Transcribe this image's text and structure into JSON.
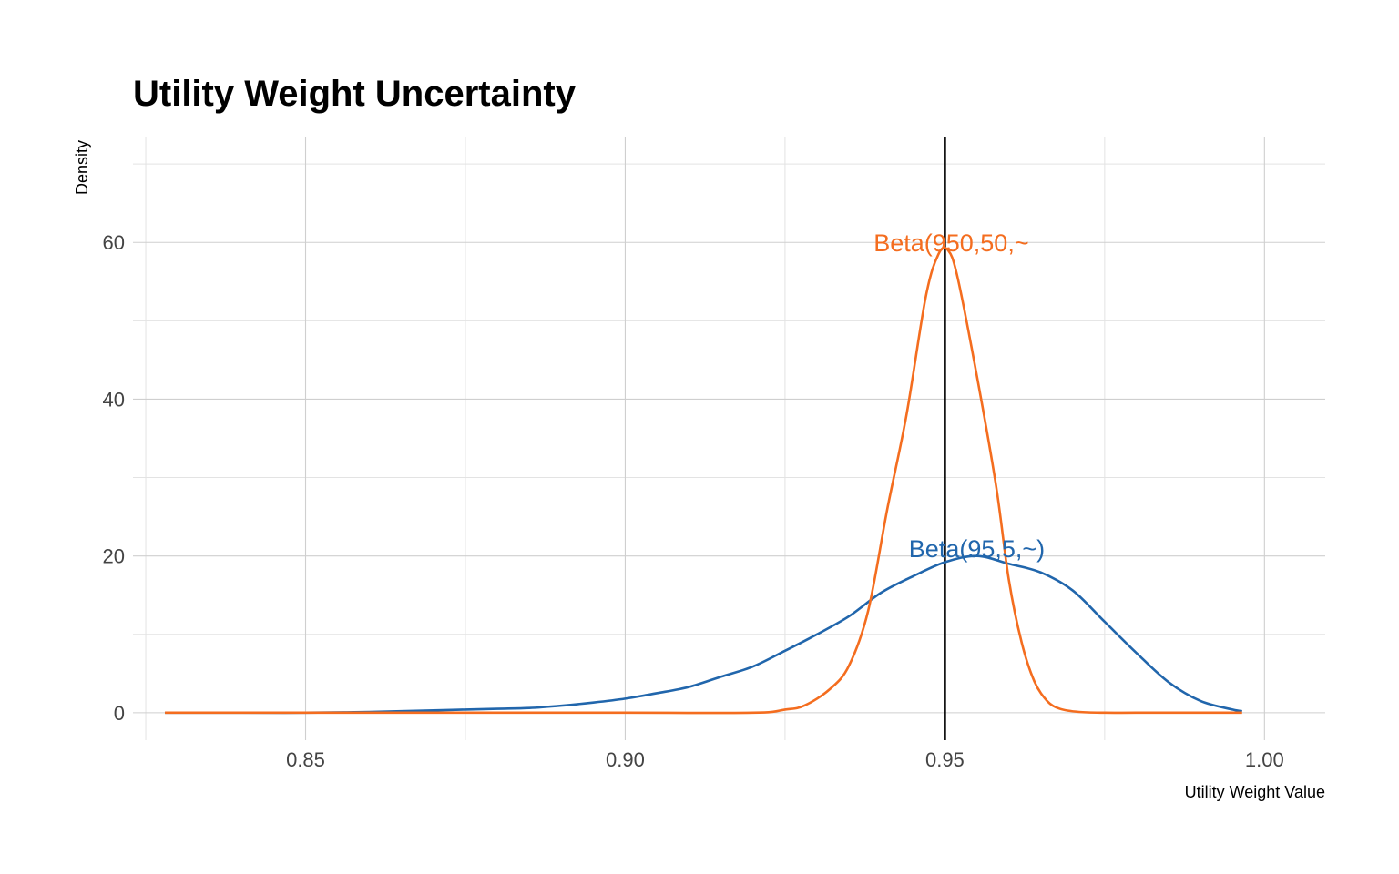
{
  "chart_data": {
    "type": "line",
    "title": "Utility Weight Uncertainty",
    "xlabel": "Utility Weight Value",
    "ylabel": "Density",
    "xlim": [
      0.823,
      1.0095
    ],
    "ylim": [
      -3.5,
      73.5
    ],
    "x_ticks": [
      0.85,
      0.9,
      0.95,
      1.0
    ],
    "x_tick_labels": [
      "0.85",
      "0.90",
      "0.95",
      "1.00"
    ],
    "x_minor_ticks": [
      0.825,
      0.875,
      0.925,
      0.975
    ],
    "y_ticks": [
      0,
      20,
      40,
      60
    ],
    "y_tick_labels": [
      "0",
      "20",
      "40",
      "60"
    ],
    "y_minor_ticks": [
      10,
      30,
      50,
      70
    ],
    "grid": true,
    "legend": "none",
    "reference_line": {
      "x": 0.95,
      "color": "#000000"
    },
    "series": [
      {
        "name": "Beta(95,5,~)",
        "color": "#2166AC",
        "label": {
          "text": "Beta(95,5,~)",
          "x": 0.955,
          "y": 21
        },
        "x": [
          0.828,
          0.84,
          0.85,
          0.86,
          0.87,
          0.875,
          0.88,
          0.885,
          0.89,
          0.895,
          0.9,
          0.905,
          0.91,
          0.915,
          0.92,
          0.925,
          0.93,
          0.935,
          0.94,
          0.945,
          0.95,
          0.955,
          0.96,
          0.965,
          0.97,
          0.975,
          0.98,
          0.985,
          0.99,
          0.995,
          0.9965
        ],
        "y": [
          0,
          0,
          0,
          0.1,
          0.3,
          0.4,
          0.5,
          0.6,
          0.9,
          1.3,
          1.8,
          2.5,
          3.3,
          4.6,
          5.9,
          7.9,
          10.0,
          12.3,
          15.3,
          17.4,
          19.2,
          20.0,
          19.0,
          17.9,
          15.6,
          11.6,
          7.6,
          3.9,
          1.5,
          0.4,
          0.2
        ]
      },
      {
        "name": "Beta(950,50,~",
        "color": "#F46D1F",
        "label": {
          "text": "Beta(950,50,~",
          "x": 0.951,
          "y": 60
        },
        "x": [
          0.828,
          0.86,
          0.9,
          0.92,
          0.925,
          0.928,
          0.932,
          0.935,
          0.938,
          0.941,
          0.944,
          0.947,
          0.949,
          0.9505,
          0.952,
          0.955,
          0.958,
          0.96,
          0.962,
          0.964,
          0.966,
          0.968,
          0.971,
          0.975,
          0.98,
          0.99,
          0.9965
        ],
        "y": [
          0,
          0,
          0,
          0,
          0.4,
          0.9,
          3.0,
          6.0,
          13.0,
          26.0,
          38.0,
          53.0,
          58.5,
          59.0,
          55.5,
          43.0,
          29.0,
          17.0,
          9.0,
          4.0,
          1.5,
          0.5,
          0.1,
          0,
          0,
          0,
          0
        ]
      }
    ]
  }
}
